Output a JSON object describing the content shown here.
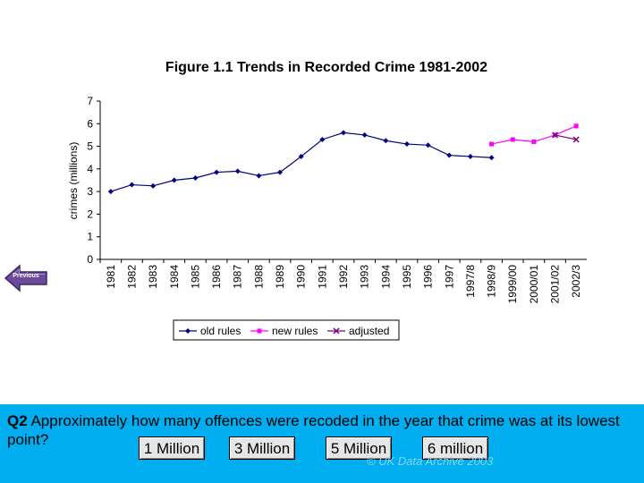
{
  "chart_data": {
    "type": "line",
    "title": "Figure 1.1 Trends in Recorded Crime 1981-2002",
    "xlabel": "",
    "ylabel": "crimes (millions)",
    "ylim": [
      0,
      7
    ],
    "yticks": [
      "0",
      "1",
      "2",
      "3",
      "4",
      "5",
      "6",
      "7"
    ],
    "grid": false,
    "legend": "bottom",
    "categories": [
      "1981",
      "1982",
      "1983",
      "1984",
      "1985",
      "1986",
      "1987",
      "1988",
      "1989",
      "1990",
      "1991",
      "1992",
      "1993",
      "1994",
      "1995",
      "1996",
      "1997",
      "1997/8",
      "1998/9",
      "1999/00",
      "2000/01",
      "2001/02",
      "2002/3"
    ],
    "series": [
      {
        "name": "old rules",
        "color": "#000080",
        "marker": "diamond",
        "values": [
          3.0,
          3.3,
          3.25,
          3.5,
          3.6,
          3.85,
          3.9,
          3.7,
          3.85,
          4.55,
          5.3,
          5.6,
          5.5,
          5.25,
          5.1,
          5.05,
          4.6,
          4.55,
          4.5,
          null,
          null,
          null,
          null
        ]
      },
      {
        "name": "new rules",
        "color": "#ff00ff",
        "marker": "square",
        "values": [
          null,
          null,
          null,
          null,
          null,
          null,
          null,
          null,
          null,
          null,
          null,
          null,
          null,
          null,
          null,
          null,
          null,
          null,
          5.1,
          5.3,
          5.2,
          5.5,
          5.9
        ]
      },
      {
        "name": "adjusted",
        "color": "#800080",
        "marker": "x",
        "values": [
          null,
          null,
          null,
          null,
          null,
          null,
          null,
          null,
          null,
          null,
          null,
          null,
          null,
          null,
          null,
          null,
          null,
          null,
          null,
          null,
          null,
          5.5,
          5.3
        ]
      }
    ]
  },
  "nav": {
    "previous_label": "Previous",
    "previous_color": "#6b4a9a"
  },
  "question": {
    "number": "Q2",
    "text": " Approximately how many offences were recoded in the year that crime was at its lowest point?",
    "answers": [
      "1 Million",
      "3 Million",
      "5 Million",
      "6 million"
    ]
  },
  "footer": {
    "copyright": "© UK Data Archive 2003"
  },
  "colors": {
    "panel": "#00aeef",
    "button": "#e6e6e6"
  }
}
